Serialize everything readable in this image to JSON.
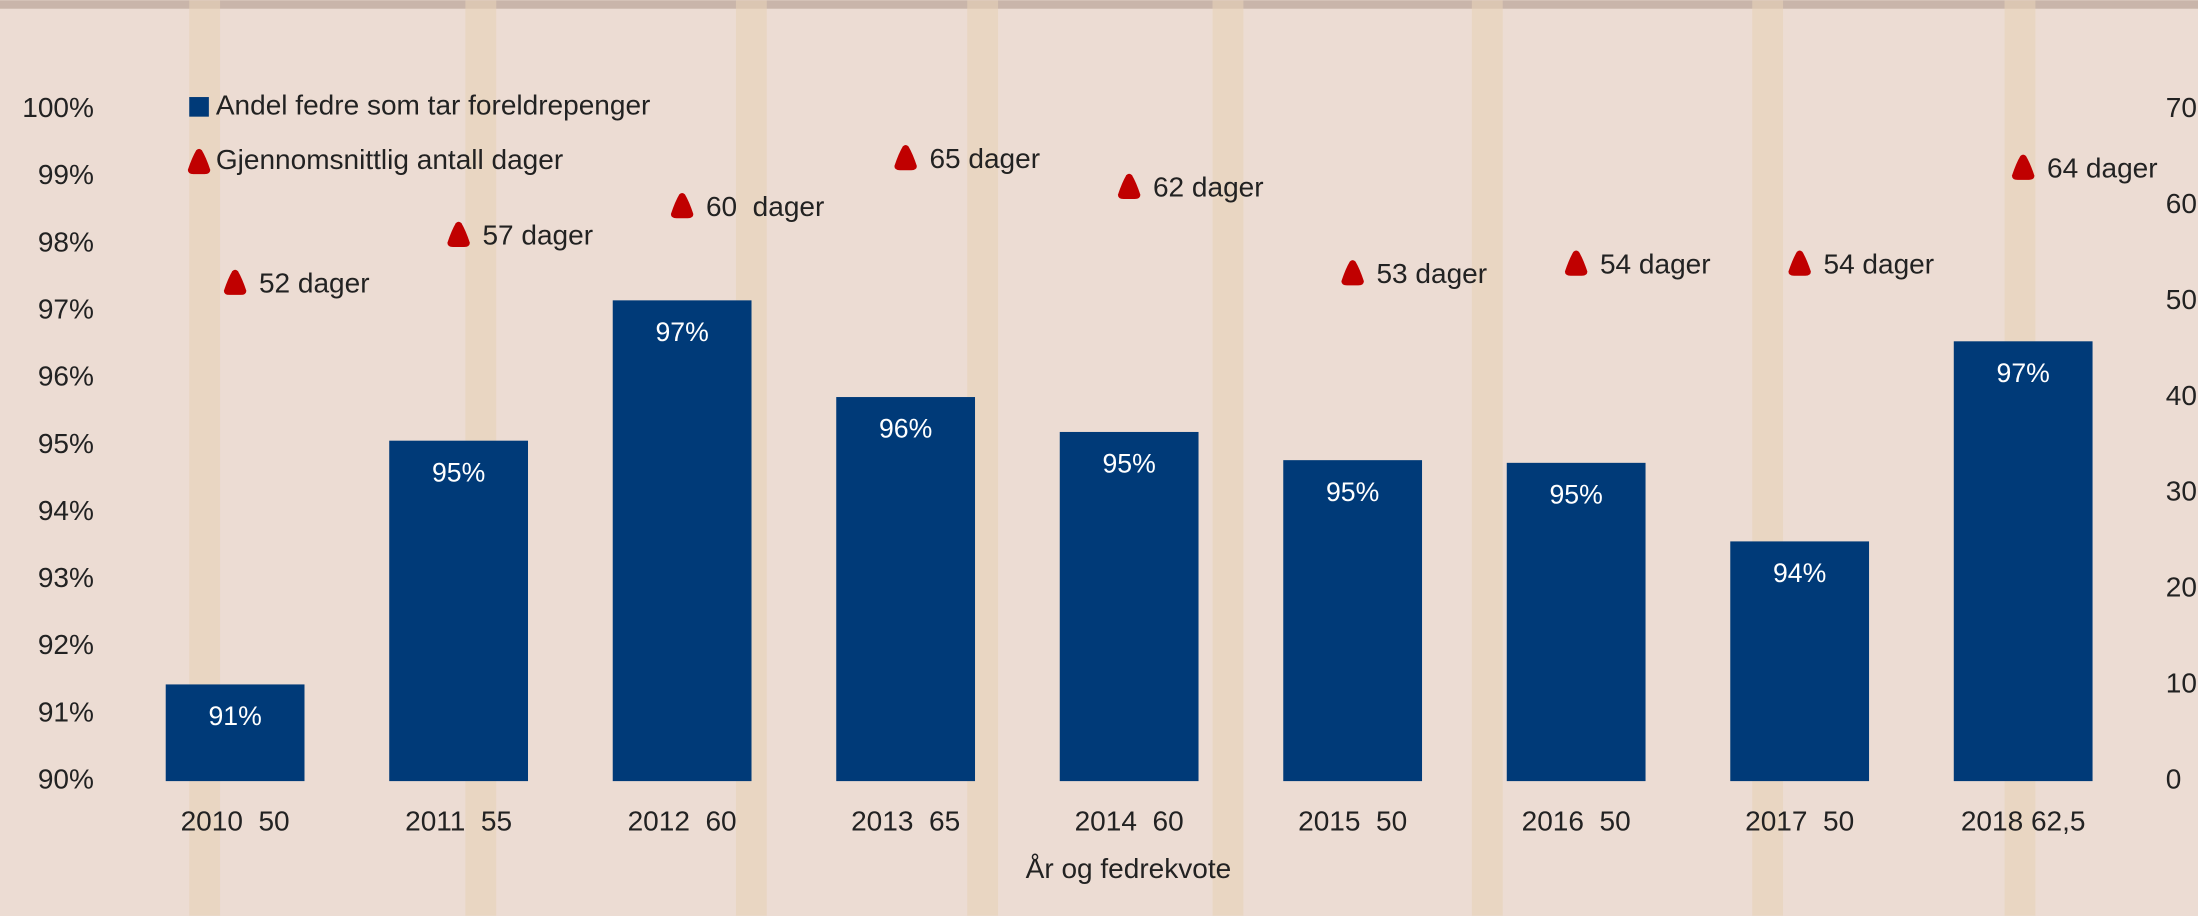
{
  "chart_data": {
    "type": "bar-scatter",
    "categories": [
      "2010  50",
      "2011  55",
      "2012  60",
      "2013  65",
      "2014  60",
      "2015  50",
      "2016  50",
      "2017  50",
      "2018 62,5"
    ],
    "x_label": "År og fedrekvote",
    "series": [
      {
        "name": "Andel fedre som tar foreldrepenger",
        "type": "bar",
        "color": "#003a78",
        "values": [
          91.44,
          95.07,
          97.16,
          95.72,
          95.2,
          94.78,
          94.74,
          93.57,
          96.55
        ],
        "value_labels": [
          "91%",
          "95%",
          "97%",
          "96%",
          "95%",
          "95%",
          "95%",
          "94%",
          "97%"
        ]
      },
      {
        "name": "Gjennomsnittlig antall dager",
        "type": "scatter",
        "axis": "y2",
        "color": "#c00000",
        "values": [
          52,
          57,
          60,
          65,
          62,
          53,
          54,
          54,
          64
        ],
        "value_labels": [
          "52 dager",
          "57 dager",
          "60  dager",
          "65 dager",
          "62 dager",
          "53 dager",
          "54 dager",
          "54 dager",
          "64 dager"
        ]
      }
    ],
    "ylim": [
      90,
      100
    ],
    "yticks": [
      {
        "value": 90,
        "label": "90%"
      },
      {
        "value": 91,
        "label": "91%"
      },
      {
        "value": 92,
        "label": "92%"
      },
      {
        "value": 93,
        "label": "93%"
      },
      {
        "value": 94,
        "label": "94%"
      },
      {
        "value": 95,
        "label": "95%"
      },
      {
        "value": 96,
        "label": "96%"
      },
      {
        "value": 97,
        "label": "97%"
      },
      {
        "value": 98,
        "label": "98%"
      },
      {
        "value": 99,
        "label": "99%"
      },
      {
        "value": 100,
        "label": "100%"
      }
    ],
    "y2lim": [
      0,
      70
    ],
    "y2ticks": [
      0,
      10,
      20,
      30,
      40,
      50,
      60,
      70
    ],
    "legend": "top-left",
    "grid": false
  }
}
